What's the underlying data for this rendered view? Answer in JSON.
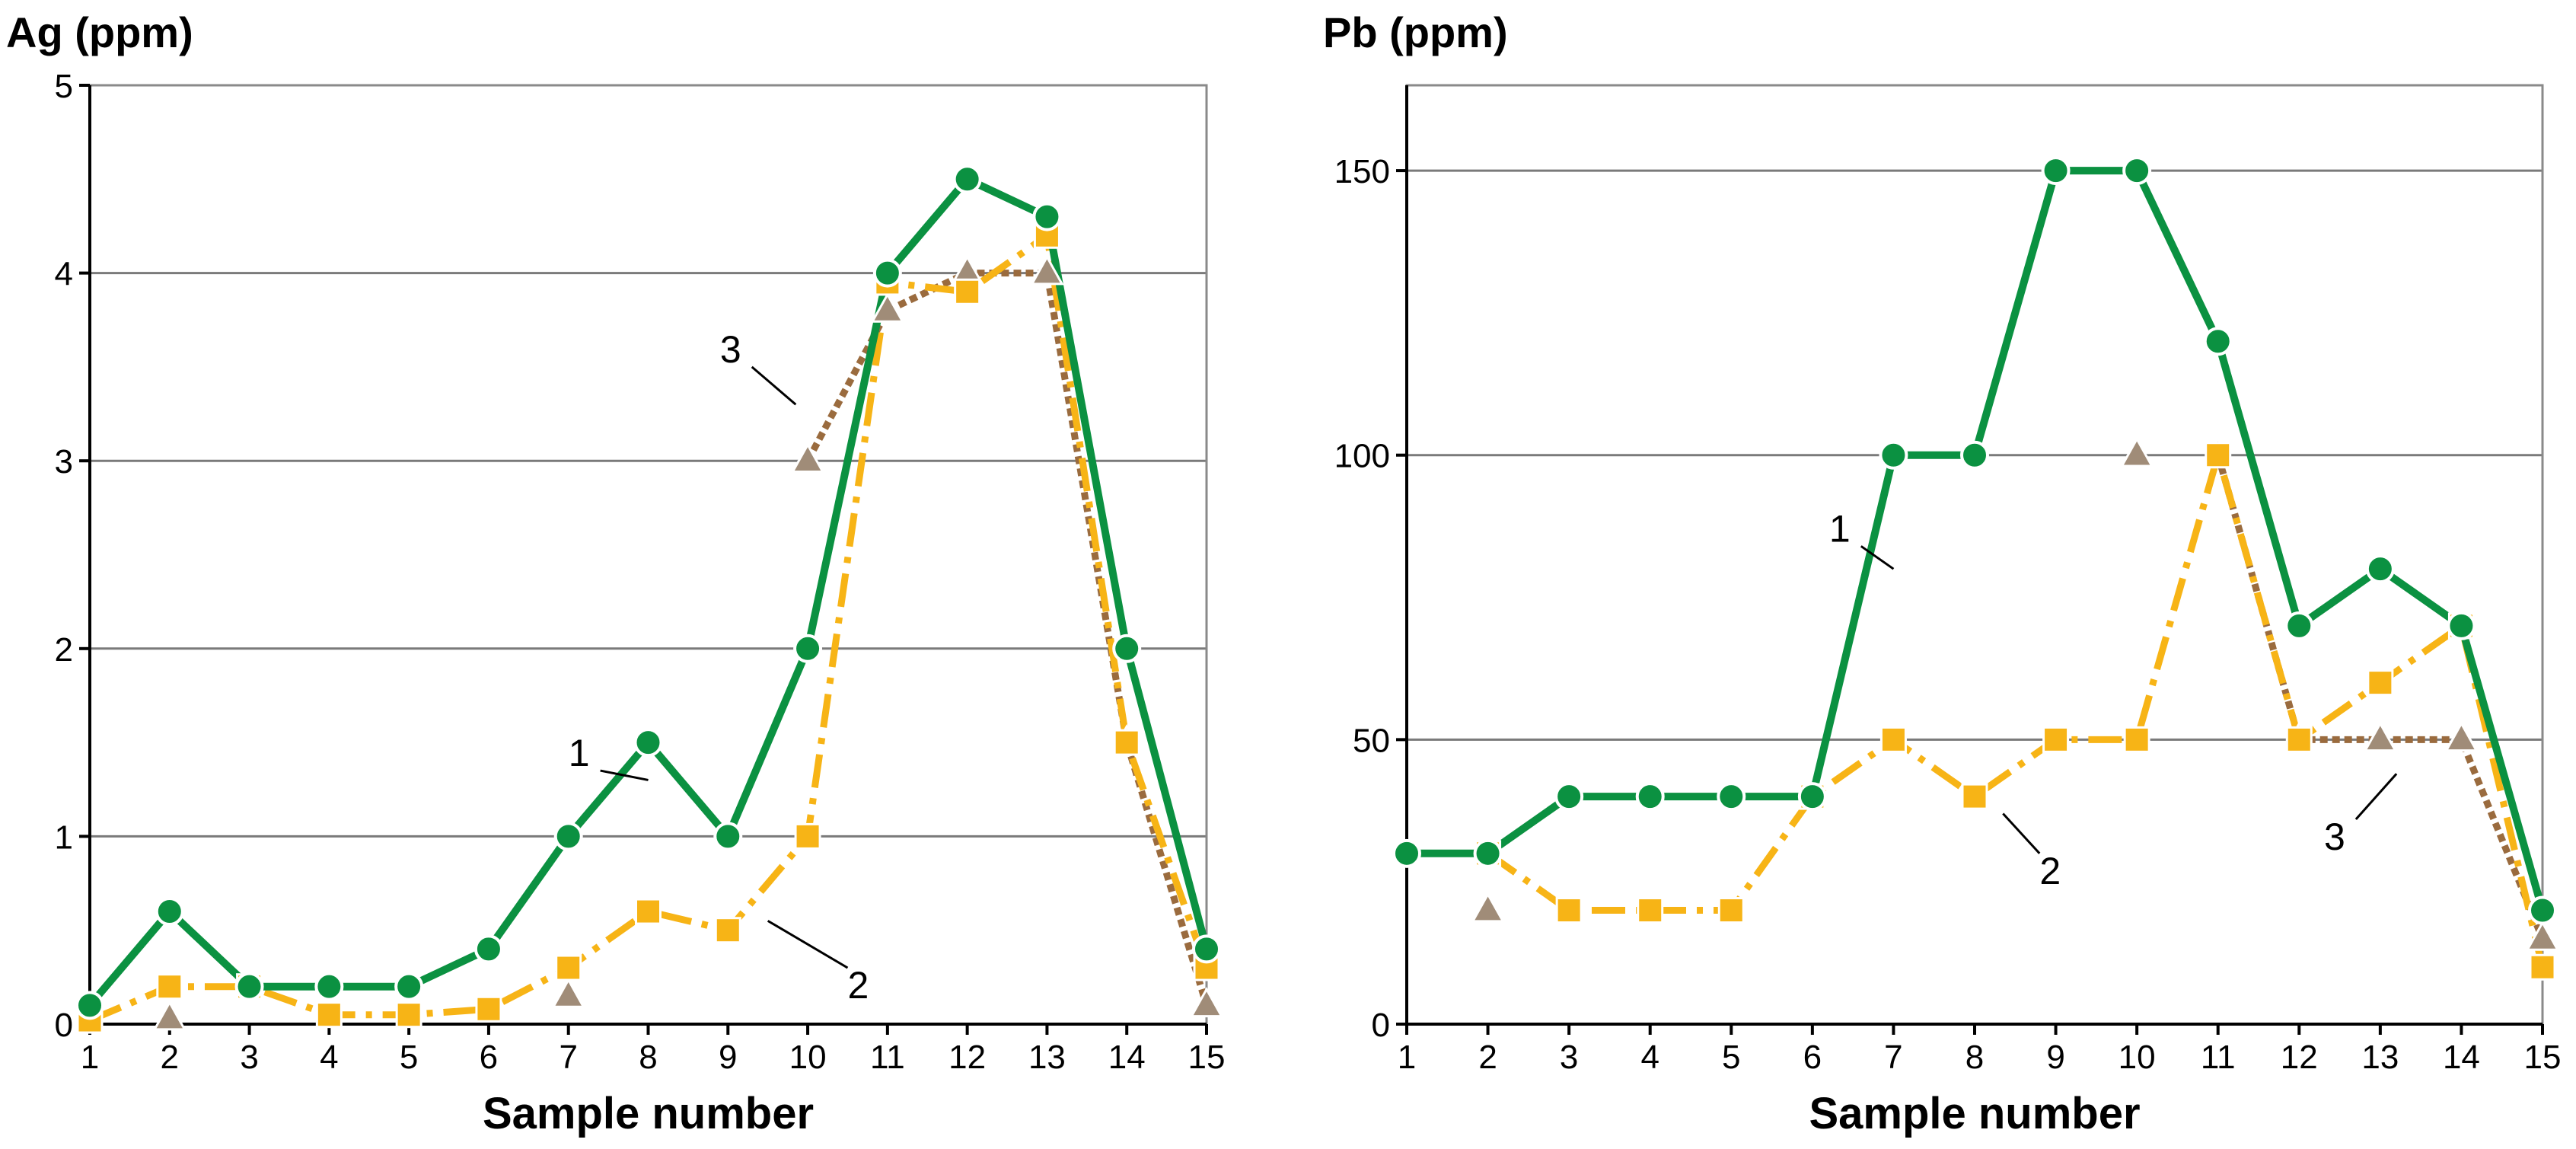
{
  "chart_data": [
    {
      "type": "line",
      "ylabel": "Ag (ppm)",
      "xlabel": "Sample number",
      "x": [
        1,
        2,
        3,
        4,
        5,
        6,
        7,
        8,
        9,
        10,
        11,
        12,
        13,
        14,
        15
      ],
      "xlim": [
        1,
        15
      ],
      "ylim": [
        0,
        5
      ],
      "yticks": [
        0,
        1,
        2,
        3,
        4,
        5
      ],
      "grid": true,
      "series": [
        {
          "name": "1",
          "color": "#0b9141",
          "style": "solid",
          "marker": "circle",
          "x": [
            1,
            2,
            3,
            4,
            5,
            6,
            7,
            8,
            9,
            10,
            11,
            12,
            13,
            14,
            15
          ],
          "y": [
            0.1,
            0.6,
            0.2,
            0.2,
            0.2,
            0.4,
            1.0,
            1.5,
            1.0,
            2.0,
            4.0,
            4.5,
            4.3,
            2.0,
            0.4
          ]
        },
        {
          "name": "2",
          "color": "#f7b416",
          "style": "dashdot",
          "marker": "square",
          "x": [
            1,
            2,
            3,
            4,
            5,
            6,
            7,
            8,
            9,
            10,
            11,
            12,
            13,
            14,
            15
          ],
          "y": [
            0.02,
            0.2,
            0.2,
            0.05,
            0.05,
            0.08,
            0.3,
            0.6,
            0.5,
            1.0,
            3.95,
            3.9,
            4.2,
            1.5,
            0.3
          ]
        },
        {
          "name": "3",
          "color": "#9a6b3e",
          "markerColor": "#a08c78",
          "style": "dotted",
          "marker": "triangle",
          "x": [
            2,
            7,
            10,
            11,
            12,
            13,
            14,
            15
          ],
          "y": [
            0.03,
            0.15,
            3.0,
            3.8,
            4.0,
            4.0,
            1.5,
            0.1
          ],
          "segments": [
            [
              2,
              3,
              4,
              5,
              6,
              7
            ]
          ]
        }
      ],
      "annotations": [
        {
          "text": "1",
          "x": 7.4,
          "y": 1.35,
          "tx": 8.0,
          "ty": 1.3
        },
        {
          "text": "2",
          "x": 10.5,
          "y": 0.3,
          "tx": 9.5,
          "ty": 0.55
        },
        {
          "text": "3",
          "x": 9.3,
          "y": 3.5,
          "tx": 9.85,
          "ty": 3.3
        }
      ]
    },
    {
      "type": "line",
      "ylabel": "Pb (ppm)",
      "xlabel": "Sample number",
      "x": [
        1,
        2,
        3,
        4,
        5,
        6,
        7,
        8,
        9,
        10,
        11,
        12,
        13,
        14,
        15
      ],
      "xlim": [
        1,
        15
      ],
      "ylim": [
        0,
        165
      ],
      "yticks": [
        0,
        50,
        100,
        150
      ],
      "grid": true,
      "series": [
        {
          "name": "1",
          "color": "#0b9141",
          "style": "solid",
          "marker": "circle",
          "x": [
            1,
            2,
            3,
            4,
            5,
            6,
            7,
            8,
            9,
            10,
            11,
            12,
            13,
            14,
            15
          ],
          "y": [
            30,
            30,
            40,
            40,
            40,
            40,
            100,
            100,
            150,
            150,
            120,
            70,
            80,
            70,
            20
          ]
        },
        {
          "name": "2",
          "color": "#f7b416",
          "style": "dashdot",
          "marker": "square",
          "x": [
            2,
            3,
            4,
            5,
            6,
            7,
            8,
            9,
            10,
            11,
            12,
            13,
            14,
            15
          ],
          "y": [
            30,
            20,
            20,
            20,
            40,
            50,
            40,
            50,
            50,
            100,
            50,
            60,
            70,
            10
          ]
        },
        {
          "name": "3",
          "color": "#9a6b3e",
          "markerColor": "#a08c78",
          "style": "dotted",
          "marker": "triangle",
          "x": [
            2,
            10,
            11,
            12,
            13,
            14,
            15
          ],
          "y": [
            20,
            100,
            100,
            50,
            50,
            50,
            15
          ],
          "segments": [
            [
              1
            ]
          ]
        }
      ],
      "annotations": [
        {
          "text": "1",
          "x": 6.6,
          "y": 84,
          "tx": 7.0,
          "ty": 80
        },
        {
          "text": "2",
          "x": 8.8,
          "y": 30,
          "tx": 8.35,
          "ty": 37
        },
        {
          "text": "3",
          "x": 12.7,
          "y": 36,
          "tx": 13.2,
          "ty": 44
        }
      ]
    }
  ]
}
